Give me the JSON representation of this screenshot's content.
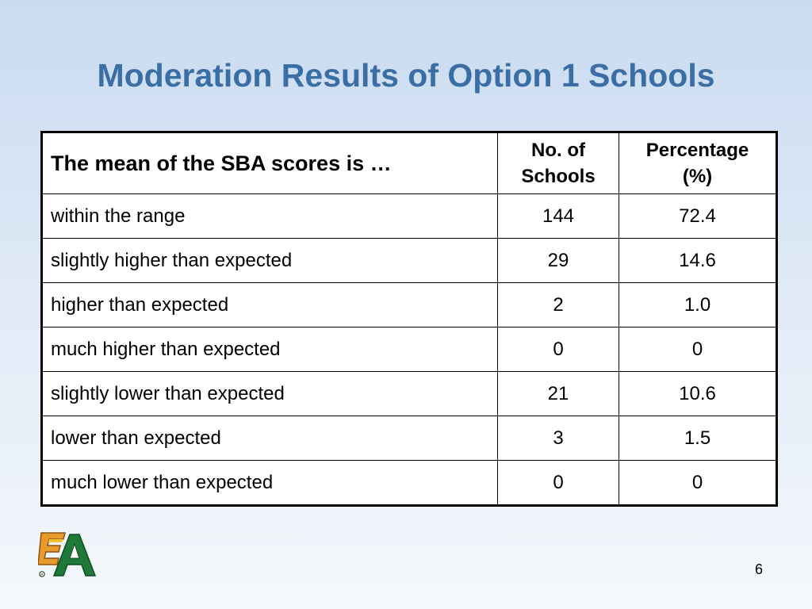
{
  "slide": {
    "title": "Moderation Results of Option 1 Schools",
    "page_number": "6"
  },
  "table": {
    "headers": {
      "description": "The mean of the SBA scores is …",
      "count_line1": "No. of",
      "count_line2": "Schools",
      "percent_line1": "Percentage",
      "percent_line2": "(%)"
    },
    "rows": [
      {
        "description": "within the range",
        "count": "144",
        "percent": "72.4"
      },
      {
        "description": "slightly higher than expected",
        "count": "29",
        "percent": "14.6"
      },
      {
        "description": "higher than expected",
        "count": "2",
        "percent": "1.0"
      },
      {
        "description": "much higher than expected",
        "count": "0",
        "percent": "0"
      },
      {
        "description": "slightly lower than expected",
        "count": "21",
        "percent": "10.6"
      },
      {
        "description": "lower than expected",
        "count": "3",
        "percent": "1.5"
      },
      {
        "description": "much lower than expected",
        "count": "0",
        "percent": "0"
      }
    ]
  },
  "logo": {
    "icon": "hkeaa-logo-icon",
    "colors": {
      "green": "#1f7a3a",
      "orange": "#e89a2a",
      "yellow": "#f2c230"
    }
  }
}
